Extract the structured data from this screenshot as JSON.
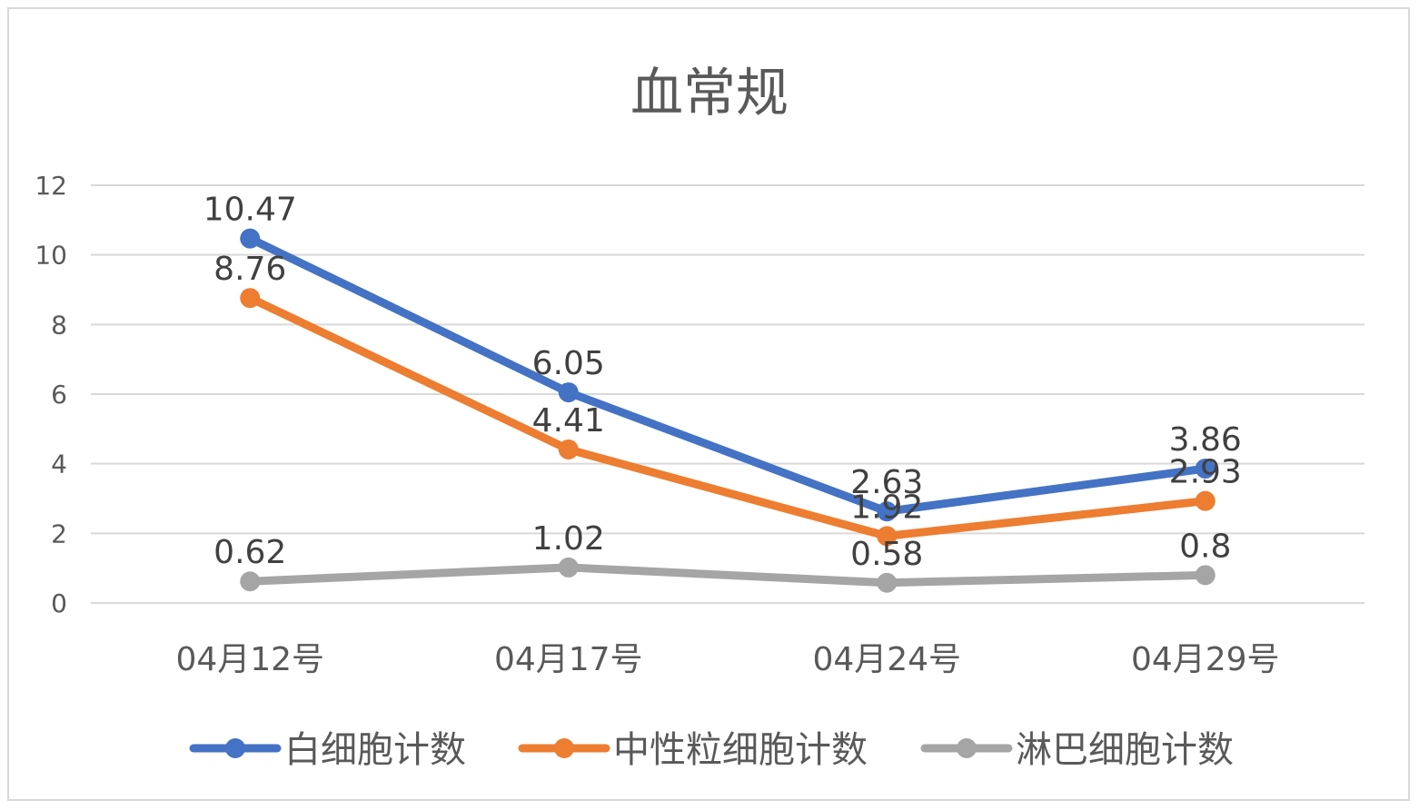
{
  "chart_data": {
    "type": "line",
    "title": "血常规",
    "categories": [
      "04月12号",
      "04月17号",
      "04月24号",
      "04月29号"
    ],
    "ylim": [
      0,
      12
    ],
    "yticks": [
      0,
      2,
      4,
      6,
      8,
      10,
      12
    ],
    "grid": true,
    "legend_position": "bottom",
    "series": [
      {
        "name": "白细胞计数",
        "color": "#4472C4",
        "values": [
          10.47,
          6.05,
          2.63,
          3.86
        ],
        "labels": [
          "10.47",
          "6.05",
          "2.63",
          "3.86"
        ]
      },
      {
        "name": "中性粒细胞计数",
        "color": "#ED7D31",
        "values": [
          8.76,
          4.41,
          1.92,
          2.93
        ],
        "labels": [
          "8.76",
          "4.41",
          "1.92",
          "2.93"
        ]
      },
      {
        "name": "淋巴细胞计数",
        "color": "#A5A5A5",
        "values": [
          0.62,
          1.02,
          0.58,
          0.8
        ],
        "labels": [
          "0.62",
          "1.02",
          "0.58",
          "0.8"
        ]
      }
    ]
  }
}
